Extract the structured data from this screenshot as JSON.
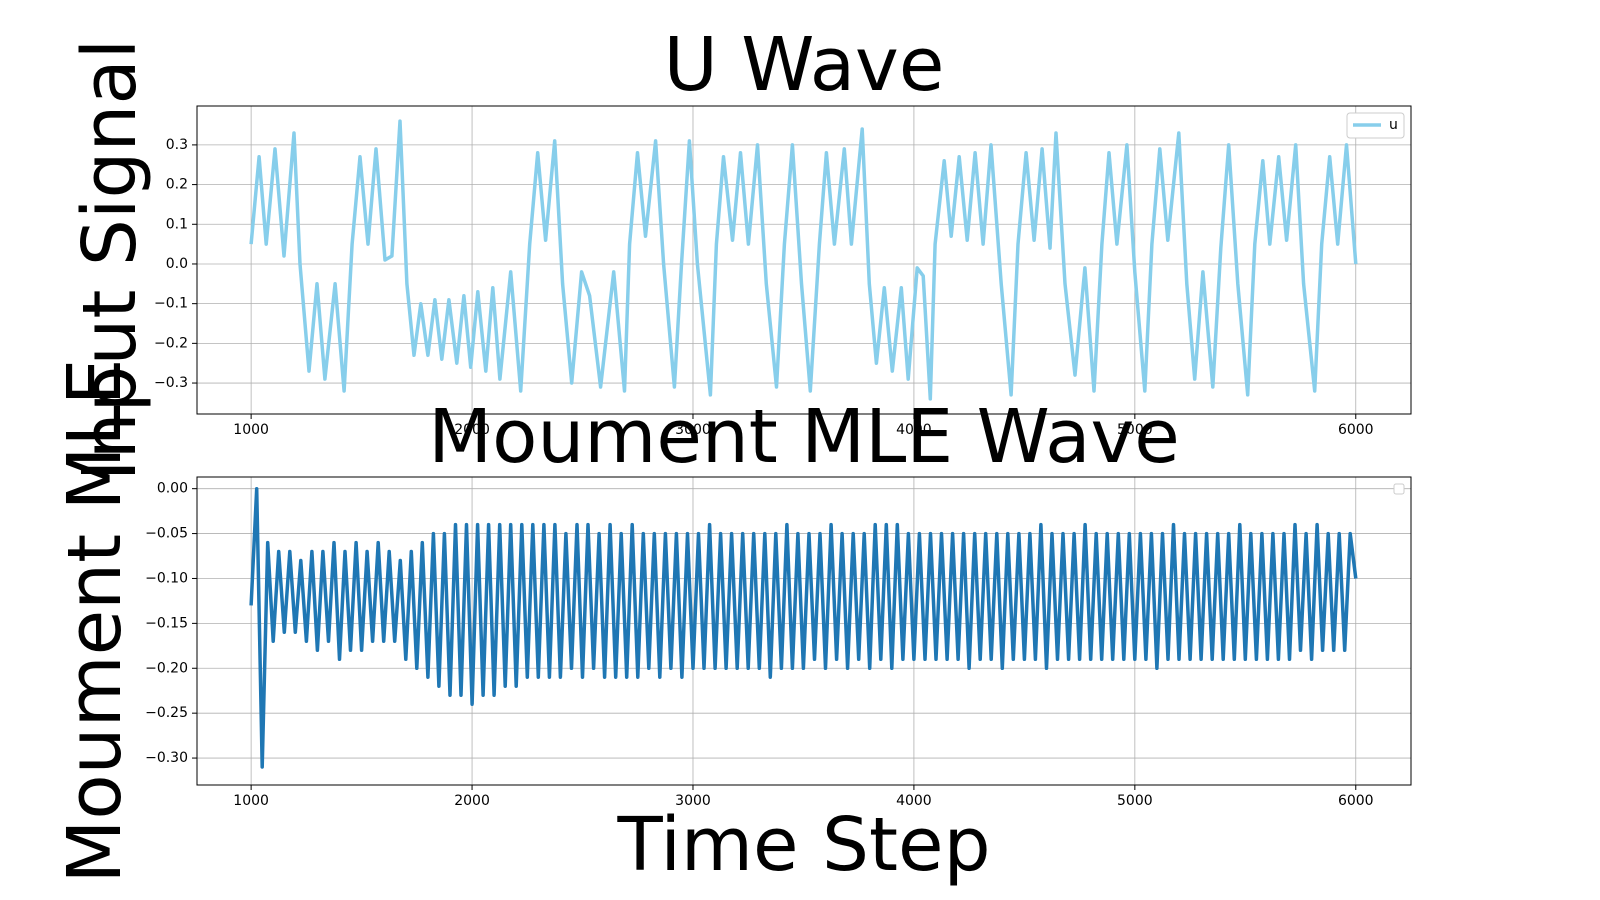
{
  "chart_data": [
    {
      "type": "line",
      "title": "U Wave",
      "y_label": "Input Signal",
      "x": [
        1000,
        1036,
        1068,
        1108,
        1149,
        1194,
        1221,
        1262,
        1298,
        1334,
        1380,
        1421,
        1457,
        1493,
        1529,
        1565,
        1606,
        1637,
        1674,
        1705,
        1737,
        1768,
        1800,
        1832,
        1863,
        1895,
        1931,
        1963,
        1994,
        2026,
        2062,
        2094,
        2126,
        2175,
        2220,
        2261,
        2297,
        2333,
        2374,
        2410,
        2451,
        2496,
        2532,
        2582,
        2641,
        2690,
        2713,
        2749,
        2785,
        2831,
        2867,
        2916,
        2948,
        2984,
        3020,
        3079,
        3106,
        3138,
        3179,
        3215,
        3251,
        3292,
        3332,
        3378,
        3414,
        3450,
        3491,
        3531,
        3572,
        3604,
        3640,
        3685,
        3717,
        3766,
        3798,
        3830,
        3866,
        3902,
        3943,
        3974,
        4015,
        4042,
        4074,
        4096,
        4137,
        4169,
        4205,
        4241,
        4277,
        4313,
        4349,
        4395,
        4440,
        4471,
        4508,
        4544,
        4580,
        4616,
        4643,
        4684,
        4729,
        4774,
        4815,
        4851,
        4883,
        4919,
        4964,
        5000,
        5045,
        5077,
        5113,
        5149,
        5199,
        5235,
        5271,
        5308,
        5353,
        5389,
        5425,
        5466,
        5511,
        5543,
        5579,
        5611,
        5651,
        5687,
        5728,
        5764,
        5814,
        5846,
        5882,
        5918,
        5958,
        6000
      ],
      "series": [
        {
          "name": "u",
          "color": "#87ceeb",
          "values": [
            0.05,
            0.27,
            0.05,
            0.29,
            0.02,
            0.33,
            0.0,
            -0.27,
            -0.05,
            -0.29,
            -0.05,
            -0.32,
            0.05,
            0.27,
            0.05,
            0.29,
            0.01,
            0.02,
            0.36,
            -0.05,
            -0.23,
            -0.1,
            -0.23,
            -0.09,
            -0.24,
            -0.09,
            -0.25,
            -0.08,
            -0.26,
            -0.07,
            -0.27,
            -0.06,
            -0.29,
            -0.02,
            -0.32,
            0.05,
            0.28,
            0.06,
            0.31,
            -0.05,
            -0.3,
            -0.02,
            -0.08,
            -0.31,
            -0.02,
            -0.32,
            0.05,
            0.28,
            0.07,
            0.31,
            0.0,
            -0.31,
            0.0,
            0.31,
            0.0,
            -0.33,
            0.05,
            0.27,
            0.06,
            0.28,
            0.05,
            0.3,
            -0.05,
            -0.31,
            0.05,
            0.3,
            -0.05,
            -0.32,
            0.05,
            0.28,
            0.05,
            0.29,
            0.05,
            0.34,
            -0.05,
            -0.25,
            -0.06,
            -0.27,
            -0.06,
            -0.29,
            -0.01,
            -0.03,
            -0.34,
            0.05,
            0.26,
            0.07,
            0.27,
            0.06,
            0.28,
            0.05,
            0.3,
            -0.05,
            -0.33,
            0.05,
            0.28,
            0.06,
            0.29,
            0.04,
            0.33,
            -0.05,
            -0.28,
            -0.01,
            -0.32,
            0.05,
            0.28,
            0.05,
            0.3,
            -0.02,
            -0.32,
            0.05,
            0.29,
            0.06,
            0.33,
            -0.05,
            -0.29,
            -0.02,
            -0.31,
            0.04,
            0.3,
            -0.05,
            -0.33,
            0.05,
            0.26,
            0.05,
            0.27,
            0.06,
            0.3,
            -0.05,
            -0.32,
            0.05,
            0.27,
            0.05,
            0.3,
            0.0
          ]
        }
      ],
      "xlim": [
        755,
        6250
      ],
      "ylim": [
        -0.378,
        0.398
      ],
      "xticks": [
        1000,
        2000,
        3000,
        4000,
        5000,
        6000
      ],
      "yticks": [
        {
          "value": -0.3,
          "label": "−0.3"
        },
        {
          "value": -0.2,
          "label": "−0.2"
        },
        {
          "value": -0.1,
          "label": "−0.1"
        },
        {
          "value": 0,
          "label": "0.0"
        },
        0.1,
        0.2,
        0.3
      ],
      "grid": true,
      "legend": "upper right"
    },
    {
      "type": "line",
      "title": "Moument MLE Wave",
      "x_label": "Time Step",
      "y_label": "Moument MLE",
      "x": [
        1000,
        1025,
        1050,
        1075,
        1100,
        1125,
        1150,
        1175,
        1200,
        1225,
        1250,
        1275,
        1300,
        1325,
        1350,
        1375,
        1400,
        1425,
        1450,
        1475,
        1500,
        1525,
        1550,
        1575,
        1600,
        1625,
        1650,
        1675,
        1700,
        1725,
        1750,
        1775,
        1800,
        1825,
        1850,
        1875,
        1900,
        1925,
        1950,
        1975,
        2000,
        2025,
        2050,
        2075,
        2100,
        2125,
        2150,
        2175,
        2200,
        2225,
        2250,
        2275,
        2300,
        2325,
        2350,
        2375,
        2400,
        2425,
        2450,
        2475,
        2500,
        2525,
        2550,
        2575,
        2600,
        2625,
        2650,
        2675,
        2700,
        2725,
        2750,
        2775,
        2800,
        2825,
        2850,
        2875,
        2900,
        2925,
        2950,
        2975,
        3000,
        3025,
        3050,
        3075,
        3100,
        3125,
        3150,
        3175,
        3200,
        3225,
        3250,
        3275,
        3300,
        3325,
        3350,
        3375,
        3400,
        3425,
        3450,
        3475,
        3500,
        3525,
        3550,
        3575,
        3600,
        3625,
        3650,
        3675,
        3700,
        3725,
        3750,
        3775,
        3800,
        3825,
        3850,
        3875,
        3900,
        3925,
        3950,
        3975,
        4000,
        4025,
        4050,
        4075,
        4100,
        4125,
        4150,
        4175,
        4200,
        4225,
        4250,
        4275,
        4300,
        4325,
        4350,
        4375,
        4400,
        4425,
        4450,
        4475,
        4500,
        4525,
        4550,
        4575,
        4600,
        4625,
        4650,
        4675,
        4700,
        4725,
        4750,
        4775,
        4800,
        4825,
        4850,
        4875,
        4900,
        4925,
        4950,
        4975,
        5000,
        5025,
        5050,
        5075,
        5100,
        5125,
        5150,
        5175,
        5200,
        5225,
        5250,
        5275,
        5300,
        5325,
        5350,
        5375,
        5400,
        5425,
        5450,
        5475,
        5500,
        5525,
        5550,
        5575,
        5600,
        5625,
        5650,
        5675,
        5700,
        5725,
        5750,
        5775,
        5800,
        5825,
        5850,
        5875,
        5900,
        5925,
        5950,
        5975,
        6000
      ],
      "series": [
        {
          "color": "#1f77b4",
          "values": [
            -0.13,
            0.0,
            -0.31,
            -0.06,
            -0.17,
            -0.07,
            -0.16,
            -0.07,
            -0.16,
            -0.08,
            -0.17,
            -0.07,
            -0.18,
            -0.07,
            -0.17,
            -0.06,
            -0.19,
            -0.07,
            -0.18,
            -0.06,
            -0.18,
            -0.07,
            -0.17,
            -0.06,
            -0.17,
            -0.07,
            -0.17,
            -0.08,
            -0.19,
            -0.07,
            -0.2,
            -0.06,
            -0.21,
            -0.05,
            -0.22,
            -0.05,
            -0.23,
            -0.04,
            -0.23,
            -0.04,
            -0.24,
            -0.04,
            -0.23,
            -0.04,
            -0.23,
            -0.04,
            -0.22,
            -0.04,
            -0.22,
            -0.04,
            -0.21,
            -0.04,
            -0.21,
            -0.04,
            -0.21,
            -0.04,
            -0.21,
            -0.05,
            -0.2,
            -0.04,
            -0.21,
            -0.04,
            -0.2,
            -0.05,
            -0.21,
            -0.04,
            -0.21,
            -0.05,
            -0.21,
            -0.04,
            -0.21,
            -0.05,
            -0.2,
            -0.05,
            -0.21,
            -0.05,
            -0.2,
            -0.05,
            -0.21,
            -0.05,
            -0.2,
            -0.05,
            -0.2,
            -0.04,
            -0.2,
            -0.05,
            -0.2,
            -0.05,
            -0.2,
            -0.05,
            -0.2,
            -0.05,
            -0.2,
            -0.05,
            -0.21,
            -0.05,
            -0.2,
            -0.04,
            -0.2,
            -0.05,
            -0.2,
            -0.05,
            -0.19,
            -0.05,
            -0.2,
            -0.04,
            -0.19,
            -0.05,
            -0.2,
            -0.05,
            -0.19,
            -0.05,
            -0.2,
            -0.04,
            -0.19,
            -0.04,
            -0.2,
            -0.04,
            -0.19,
            -0.05,
            -0.19,
            -0.05,
            -0.19,
            -0.05,
            -0.19,
            -0.05,
            -0.19,
            -0.05,
            -0.19,
            -0.05,
            -0.2,
            -0.05,
            -0.19,
            -0.05,
            -0.19,
            -0.05,
            -0.2,
            -0.05,
            -0.19,
            -0.05,
            -0.19,
            -0.05,
            -0.19,
            -0.04,
            -0.2,
            -0.05,
            -0.19,
            -0.05,
            -0.19,
            -0.05,
            -0.19,
            -0.04,
            -0.19,
            -0.05,
            -0.19,
            -0.05,
            -0.19,
            -0.05,
            -0.19,
            -0.05,
            -0.19,
            -0.05,
            -0.19,
            -0.05,
            -0.2,
            -0.05,
            -0.19,
            -0.04,
            -0.19,
            -0.05,
            -0.19,
            -0.05,
            -0.19,
            -0.05,
            -0.19,
            -0.05,
            -0.19,
            -0.05,
            -0.19,
            -0.04,
            -0.19,
            -0.05,
            -0.19,
            -0.05,
            -0.19,
            -0.05,
            -0.19,
            -0.05,
            -0.19,
            -0.04,
            -0.18,
            -0.05,
            -0.19,
            -0.04,
            -0.18,
            -0.05,
            -0.18,
            -0.05,
            -0.18,
            -0.05,
            -0.1
          ]
        }
      ],
      "xlim": [
        755,
        6250
      ],
      "ylim": [
        -0.33,
        0.013
      ],
      "xticks": [
        1000,
        2000,
        3000,
        4000,
        5000,
        6000
      ],
      "yticks": [
        {
          "value": -0.3,
          "label": "−0.30"
        },
        {
          "value": -0.25,
          "label": "−0.25"
        },
        {
          "value": -0.2,
          "label": "−0.20"
        },
        {
          "value": -0.15,
          "label": "−0.15"
        },
        {
          "value": -0.1,
          "label": "−0.10"
        },
        {
          "value": -0.05,
          "label": "−0.05"
        },
        {
          "value": 0,
          "label": "0.00"
        }
      ],
      "grid": true
    }
  ]
}
